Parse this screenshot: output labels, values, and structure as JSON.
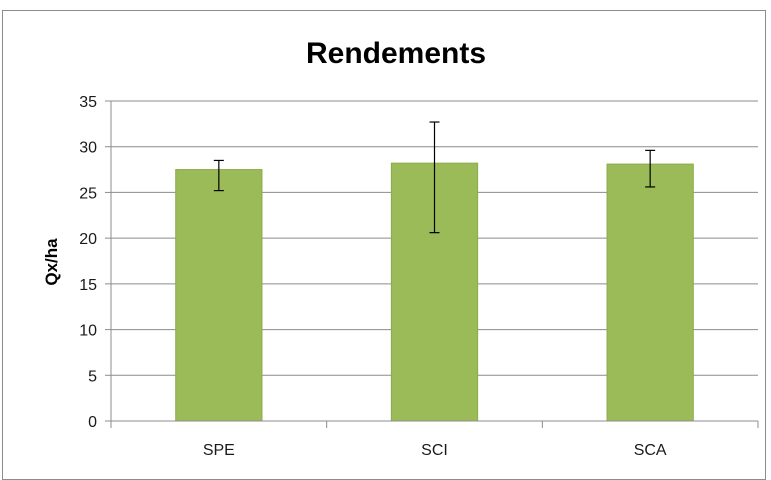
{
  "chart_data": {
    "type": "bar",
    "title": "Rendements",
    "xlabel": "",
    "ylabel": "Qx/ha",
    "categories": [
      "SPE",
      "SCI",
      "SCA"
    ],
    "values": [
      27.5,
      28.2,
      28.1
    ],
    "error_bars": [
      {
        "low": 25.2,
        "high": 28.5
      },
      {
        "low": 20.6,
        "high": 32.7
      },
      {
        "low": 25.6,
        "high": 29.6
      }
    ],
    "ylim": [
      0,
      35
    ],
    "yticks": [
      0,
      5,
      10,
      15,
      20,
      25,
      30,
      35
    ],
    "ytick_labels": [
      "0",
      "5",
      "10",
      "15",
      "20",
      "25",
      "30",
      "35"
    ],
    "grid": true,
    "legend": "none",
    "colors": {
      "bar": "#9bbb59",
      "bar_border": "#8aab4a",
      "grid": "#8c8c8c",
      "error_bar": "#000000"
    }
  }
}
